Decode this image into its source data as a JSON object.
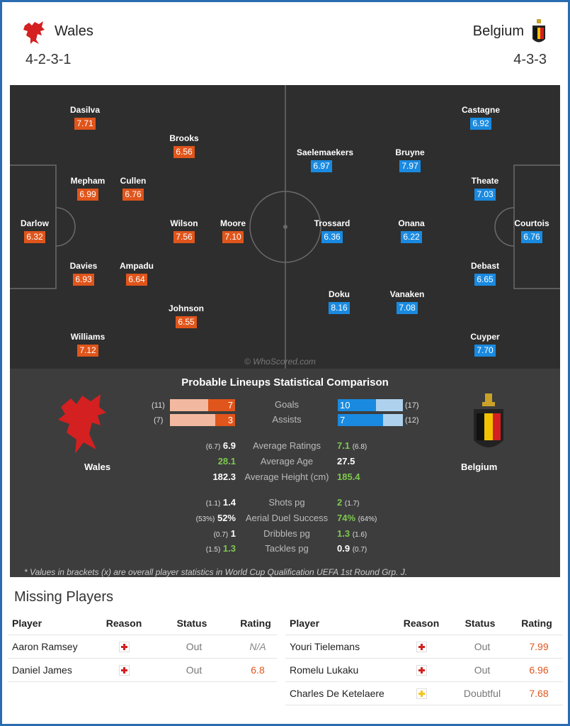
{
  "home": {
    "name": "Wales",
    "formation": "4-2-3-1",
    "players": [
      {
        "name": "Dasilva",
        "rating": "7.71"
      },
      {
        "name": "Brooks",
        "rating": "6.56"
      },
      {
        "name": "Mepham",
        "rating": "6.99"
      },
      {
        "name": "Cullen",
        "rating": "6.76"
      },
      {
        "name": "Darlow",
        "rating": "6.32"
      },
      {
        "name": "Wilson",
        "rating": "7.56"
      },
      {
        "name": "Moore",
        "rating": "7.10"
      },
      {
        "name": "Davies",
        "rating": "6.93"
      },
      {
        "name": "Ampadu",
        "rating": "6.64"
      },
      {
        "name": "Johnson",
        "rating": "6.55"
      },
      {
        "name": "Williams",
        "rating": "7.12"
      }
    ]
  },
  "away": {
    "name": "Belgium",
    "formation": "4-3-3",
    "players": [
      {
        "name": "Castagne",
        "rating": "6.92"
      },
      {
        "name": "Saelemaekers",
        "rating": "6.97"
      },
      {
        "name": "Bruyne",
        "rating": "7.97"
      },
      {
        "name": "Theate",
        "rating": "7.03"
      },
      {
        "name": "Trossard",
        "rating": "6.36"
      },
      {
        "name": "Onana",
        "rating": "6.22"
      },
      {
        "name": "Courtois",
        "rating": "6.76"
      },
      {
        "name": "Debast",
        "rating": "6.65"
      },
      {
        "name": "Doku",
        "rating": "8.16"
      },
      {
        "name": "Vanaken",
        "rating": "7.08"
      },
      {
        "name": "Cuyper",
        "rating": "7.70"
      }
    ]
  },
  "watermark": "© WhoScored.com",
  "comparison": {
    "title": "Probable Lineups Statistical Comparison",
    "home_label": "Wales",
    "away_label": "Belgium",
    "bars": [
      {
        "label": "Goals",
        "home": "7",
        "home_bracket": "(11)",
        "home_share": 0.41,
        "away": "10",
        "away_bracket": "(17)",
        "away_share": 0.59
      },
      {
        "label": "Assists",
        "home": "3",
        "home_bracket": "(7)",
        "home_share": 0.3,
        "away": "7",
        "away_bracket": "(12)",
        "away_share": 0.7
      }
    ],
    "stats": [
      {
        "label": "Average Ratings",
        "home": "6.9",
        "home_bracket": "(6.7)",
        "away": "7.1",
        "away_bracket": "(6.8)",
        "winner": "away"
      },
      {
        "label": "Average Age",
        "home": "28.1",
        "home_bracket": "",
        "away": "27.5",
        "away_bracket": "",
        "winner": "home"
      },
      {
        "label": "Average Height (cm)",
        "home": "182.3",
        "home_bracket": "",
        "away": "185.4",
        "away_bracket": "",
        "winner": "away"
      },
      {
        "label": "Shots pg",
        "home": "1.4",
        "home_bracket": "(1.1)",
        "away": "2",
        "away_bracket": "(1.7)",
        "winner": "away"
      },
      {
        "label": "Aerial Duel Success",
        "home": "52%",
        "home_bracket": "(53%)",
        "away": "74%",
        "away_bracket": "(64%)",
        "winner": "away"
      },
      {
        "label": "Dribbles pg",
        "home": "1",
        "home_bracket": "(0.7)",
        "away": "1.3",
        "away_bracket": "(1.6)",
        "winner": "away"
      },
      {
        "label": "Tackles pg",
        "home": "1.3",
        "home_bracket": "(1.5)",
        "away": "0.9",
        "away_bracket": "(0.7)",
        "winner": "home"
      }
    ],
    "footnote": "* Values in brackets (x) are overall player statistics in World Cup Qualification UEFA 1st Round Grp. J."
  },
  "missing": {
    "title": "Missing Players",
    "headers": {
      "player": "Player",
      "reason": "Reason",
      "status": "Status",
      "rating": "Rating"
    },
    "home": [
      {
        "player": "Aaron Ramsey",
        "reason": "injury",
        "status": "Out",
        "rating": "N/A"
      },
      {
        "player": "Daniel James",
        "reason": "injury",
        "status": "Out",
        "rating": "6.8"
      }
    ],
    "away": [
      {
        "player": "Youri Tielemans",
        "reason": "injury",
        "status": "Out",
        "rating": "7.99"
      },
      {
        "player": "Romelu Lukaku",
        "reason": "injury",
        "status": "Out",
        "rating": "6.96"
      },
      {
        "player": "Charles De Ketelaere",
        "reason": "doubtful",
        "status": "Doubtful",
        "rating": "7.68"
      }
    ]
  },
  "colors": {
    "home": "#e0551b",
    "away": "#1a8ae0",
    "better": "#7ec850",
    "frame": "#2b6cb0"
  }
}
